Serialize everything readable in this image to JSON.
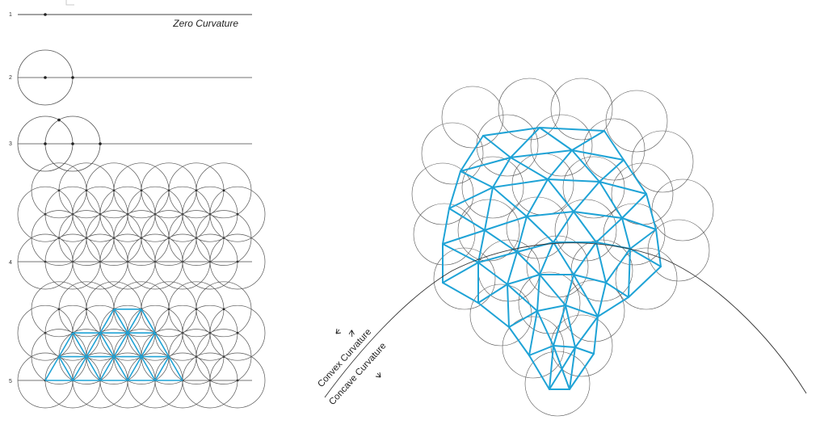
{
  "step_labels": [
    "1",
    "2",
    "3",
    "4",
    "5"
  ],
  "zero_curvature_label": "Zero Curvature",
  "convex_label": "Convex Curvature",
  "concave_label": "Concave Curvature",
  "colors": {
    "line": "#444444",
    "circle": "#555555",
    "highlight": "#1fa3d6",
    "text": "#222222"
  }
}
